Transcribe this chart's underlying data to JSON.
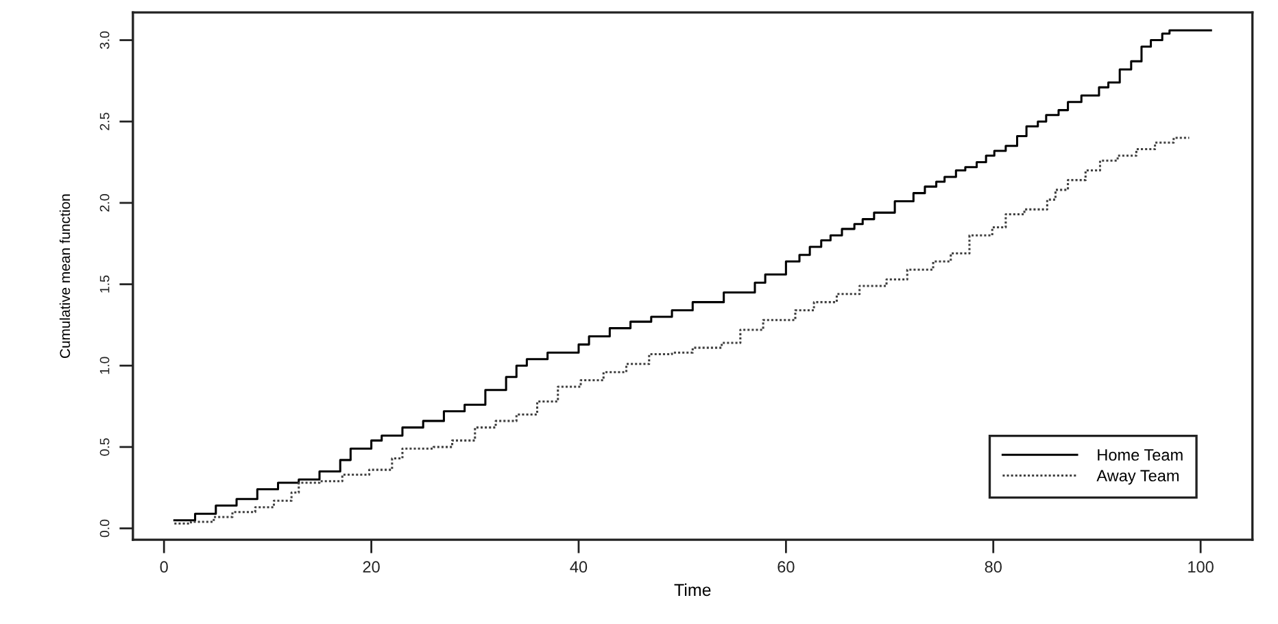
{
  "chart_data": {
    "type": "step",
    "xlabel": "Time",
    "ylabel": "Cumulative mean function",
    "series": [
      {
        "name": "Home Team",
        "color": "#000000",
        "line_style": "solid",
        "x": [
          1,
          3,
          5,
          7,
          9,
          11,
          13,
          15,
          17,
          18,
          20,
          21,
          23,
          25,
          27,
          29,
          31,
          33,
          34,
          35,
          37,
          40,
          41,
          43,
          45,
          47,
          49,
          51,
          54,
          57,
          58,
          60,
          61.3,
          62.3,
          63.4,
          64.3,
          65.4,
          66.6,
          67.4,
          68.5,
          70.5,
          72.3,
          73.4,
          74.5,
          75.3,
          76.4,
          77.3,
          78.4,
          79.3,
          80.1,
          81.2,
          82.3,
          83.2,
          84.3,
          85.1,
          86.3,
          87.2,
          88.5,
          90.2,
          91.1,
          92.2,
          93.3,
          94.3,
          95.2,
          96.3,
          97,
          101
        ],
        "values": [
          0.05,
          0.09,
          0.14,
          0.18,
          0.24,
          0.28,
          0.3,
          0.35,
          0.42,
          0.49,
          0.54,
          0.57,
          0.62,
          0.66,
          0.72,
          0.76,
          0.85,
          0.93,
          1.0,
          1.04,
          1.08,
          1.13,
          1.18,
          1.23,
          1.27,
          1.3,
          1.34,
          1.39,
          1.45,
          1.51,
          1.56,
          1.64,
          1.68,
          1.73,
          1.77,
          1.8,
          1.84,
          1.87,
          1.9,
          1.94,
          2.01,
          2.06,
          2.1,
          2.13,
          2.16,
          2.2,
          2.22,
          2.25,
          2.29,
          2.32,
          2.35,
          2.41,
          2.47,
          2.5,
          2.54,
          2.57,
          2.62,
          2.66,
          2.71,
          2.74,
          2.82,
          2.87,
          2.96,
          3.0,
          3.04,
          3.06,
          3.06
        ]
      },
      {
        "name": "Away Team",
        "color": "#404040",
        "line_style": "dotted",
        "x": [
          1,
          2.6,
          4.8,
          6.6,
          8.8,
          10.6,
          12.3,
          13,
          15,
          17.2,
          19.8,
          22,
          23,
          26,
          27.8,
          30,
          32,
          34,
          36,
          38,
          40.2,
          42.4,
          44.6,
          46.8,
          49,
          51,
          53.8,
          55.6,
          57.8,
          60.9,
          62.7,
          64.9,
          67.1,
          69.7,
          71.7,
          74.2,
          75.9,
          77.7,
          79.9,
          81.2,
          83,
          85.2,
          86,
          87.2,
          88.9,
          90.3,
          92,
          93.8,
          95.6,
          97.4,
          98.9
        ],
        "values": [
          0.03,
          0.04,
          0.07,
          0.1,
          0.13,
          0.17,
          0.22,
          0.28,
          0.29,
          0.33,
          0.36,
          0.43,
          0.49,
          0.5,
          0.54,
          0.62,
          0.66,
          0.7,
          0.78,
          0.87,
          0.91,
          0.96,
          1.01,
          1.07,
          1.08,
          1.11,
          1.14,
          1.22,
          1.28,
          1.34,
          1.39,
          1.44,
          1.49,
          1.53,
          1.59,
          1.64,
          1.69,
          1.8,
          1.85,
          1.93,
          1.96,
          2.02,
          2.08,
          2.14,
          2.2,
          2.26,
          2.29,
          2.33,
          2.37,
          2.4,
          2.4
        ]
      }
    ],
    "xlim": [
      -3,
      105
    ],
    "ylim": [
      -0.07,
      3.17
    ],
    "xticks": [
      0,
      20,
      40,
      60,
      80,
      100
    ],
    "yticks": [
      {
        "value": 0,
        "label": "0.0"
      },
      0.5,
      {
        "value": 1,
        "label": "1.0"
      },
      1.5,
      {
        "value": 2,
        "label": "2.0"
      },
      2.5,
      {
        "value": 3,
        "label": "3.0"
      }
    ],
    "grid": false,
    "legend": "bottom right"
  }
}
